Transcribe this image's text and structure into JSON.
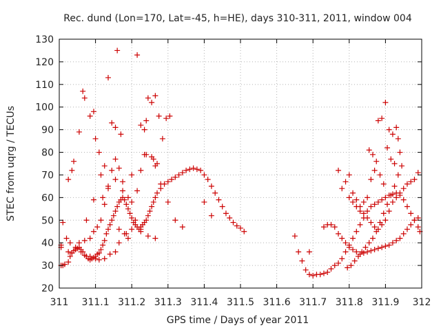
{
  "chart_data": {
    "type": "scatter",
    "title": "Rec. dund (Lon=170, Lat=-45, h=HE), days 310-311, 2011, window 004",
    "xlabel": "GPS time / Days of year 2011",
    "ylabel": "STEC from uqrg / TECUs",
    "xlim": [
      311,
      312
    ],
    "ylim": [
      20,
      130
    ],
    "xticks": [
      311,
      311.1,
      311.2,
      311.3,
      311.4,
      311.5,
      311.6,
      311.7,
      311.8,
      311.9,
      312
    ],
    "xtick_labels": [
      "311",
      "311.1",
      "311.2",
      "311.3",
      "311.4",
      "311.5",
      "311.6",
      "311.7",
      "311.8",
      "311.9",
      "312"
    ],
    "yticks": [
      20,
      30,
      40,
      50,
      60,
      70,
      80,
      90,
      100,
      110,
      120,
      130
    ],
    "ytick_labels": [
      "20",
      "30",
      "40",
      "50",
      "60",
      "70",
      "80",
      "90",
      "100",
      "110",
      "120",
      "130"
    ],
    "grid": true,
    "marker": "plus",
    "color": "#cc0000",
    "series": [
      {
        "x": [
          311.005,
          311.01,
          311.015,
          311.025,
          311.03,
          311.035,
          311.04,
          311.045,
          311.05,
          311.055,
          311.06,
          311.065,
          311.07,
          311.075,
          311.08,
          311.085,
          311.09,
          311.095,
          311.1,
          311.105,
          311.11,
          311.115,
          311.12,
          311.125,
          311.13,
          311.135,
          311.14,
          311.145,
          311.15,
          311.155,
          311.16,
          311.165,
          311.17,
          311.175,
          311.18,
          311.185,
          311.19,
          311.195,
          311.2,
          311.205,
          311.21,
          311.215,
          311.22,
          311.225,
          311.23,
          311.235,
          311.24,
          311.245,
          311.25,
          311.255,
          311.26,
          311.265,
          311.27,
          311.28,
          311.29,
          311.3,
          311.31,
          311.32,
          311.33,
          311.34,
          311.35,
          311.36,
          311.37,
          311.38,
          311.39,
          311.4,
          311.41,
          311.42,
          311.43,
          311.44,
          311.45,
          311.46,
          311.47,
          311.48,
          311.49,
          311.5,
          311.51,
          311.005,
          311.01,
          311.025,
          311.035,
          311.04,
          311.055,
          311.065,
          311.07,
          311.085,
          311.095,
          311.1,
          311.11,
          311.115,
          311.12,
          311.125,
          311.135,
          311.145,
          311.155,
          311.16,
          311.165,
          311.175,
          311.185,
          311.19,
          311.2,
          311.21,
          311.215,
          311.225,
          311.235,
          311.245,
          311.255,
          311.265,
          311.275,
          311.285,
          311.295,
          311.305,
          311.005,
          311.025,
          311.035,
          311.055,
          311.07,
          311.085,
          311.095,
          311.105,
          311.115,
          311.125,
          311.135,
          311.145,
          311.155,
          311.165,
          311.175,
          311.19,
          311.2,
          311.215,
          311.225,
          311.24,
          311.26,
          311.27,
          311.28,
          311.3,
          311.32,
          311.34,
          311.4,
          311.42,
          311.02,
          311.03,
          311.045,
          311.06,
          311.085,
          311.1,
          311.11,
          311.125,
          311.14,
          311.155,
          311.165,
          311.18,
          311.2,
          311.225,
          311.245,
          311.265,
          311.075,
          311.095,
          311.135,
          311.155,
          311.17,
          311.225,
          311.235,
          311.24,
          311.255,
          311.265,
          311.65,
          311.66,
          311.67,
          311.68,
          311.69,
          311.7,
          311.71,
          311.72,
          311.73,
          311.74,
          311.75,
          311.76,
          311.77,
          311.78,
          311.79,
          311.8,
          311.81,
          311.82,
          311.83,
          311.84,
          311.85,
          311.86,
          311.87,
          311.88,
          311.89,
          311.9,
          311.91,
          311.92,
          311.93,
          311.94,
          311.95,
          311.96,
          311.97,
          311.98,
          311.99,
          311.995,
          311.69,
          311.73,
          311.74,
          311.75,
          311.76,
          311.77,
          311.78,
          311.79,
          311.8,
          311.81,
          311.82,
          311.83,
          311.84,
          311.85,
          311.86,
          311.87,
          311.88,
          311.89,
          311.9,
          311.91,
          311.92,
          311.93,
          311.94,
          311.95,
          311.96,
          311.97,
          311.98,
          311.99,
          311.77,
          311.78,
          311.79,
          311.8,
          311.81,
          311.82,
          311.83,
          311.84,
          311.85,
          311.86,
          311.87,
          311.88,
          311.89,
          311.9,
          311.91,
          311.92,
          311.93,
          311.94,
          311.95,
          311.96,
          311.97,
          311.98,
          311.99,
          311.795,
          311.805,
          311.815,
          311.825,
          311.835,
          311.845,
          311.855,
          311.865,
          311.875,
          311.885,
          311.895,
          311.905,
          311.915,
          311.925,
          311.935,
          311.945,
          311.8,
          311.81,
          311.82,
          311.83,
          311.84,
          311.85,
          311.86,
          311.87,
          311.88,
          311.89,
          311.9,
          311.91,
          311.92,
          311.93,
          311.94,
          311.855,
          311.865,
          311.875,
          311.885,
          311.895,
          311.905,
          311.915,
          311.925,
          311.935
        ],
        "y": [
          30,
          30,
          30.5,
          31.5,
          34,
          35.5,
          36.5,
          37,
          37.5,
          38,
          37,
          36,
          34.5,
          34,
          33,
          32.5,
          33,
          33.5,
          34,
          35,
          35.5,
          37,
          39,
          41,
          44,
          46,
          48,
          50,
          52,
          54,
          56,
          58,
          59,
          60,
          59,
          57,
          55,
          53,
          51,
          49,
          48,
          47,
          46,
          47,
          48,
          49,
          50,
          52,
          54,
          56,
          58,
          60,
          62,
          64,
          66,
          67,
          68,
          69,
          70,
          71,
          72,
          72.5,
          73,
          72.5,
          72,
          70,
          68,
          65,
          62,
          59,
          56,
          53,
          51,
          49,
          47.5,
          46.5,
          45,
          39,
          49,
          68,
          72,
          76,
          89,
          107,
          104,
          96,
          98,
          86,
          80,
          70,
          60,
          74,
          113,
          93,
          91,
          125,
          46,
          63,
          44,
          42,
          70,
          50,
          123,
          45,
          79,
          104,
          102,
          105,
          96,
          86,
          95,
          96,
          38,
          36,
          35.5,
          40,
          41,
          42,
          45,
          47,
          50,
          57,
          65,
          72,
          77,
          73,
          67,
          60,
          58,
          63,
          72,
          79,
          77,
          75,
          66,
          58,
          50,
          47,
          58,
          52,
          42,
          40,
          38,
          36,
          34,
          33,
          32.5,
          33,
          35,
          36,
          40,
          44,
          46,
          46,
          43,
          42,
          50,
          59,
          64,
          68,
          88,
          92,
          90,
          94,
          78,
          74,
          43,
          36,
          32,
          28,
          26,
          25.5,
          26,
          26,
          26.5,
          27,
          28.5,
          30,
          31,
          33,
          36,
          39,
          42,
          45,
          48,
          51,
          54,
          56,
          57,
          58,
          59,
          60,
          61,
          61.5,
          62,
          61,
          59,
          56,
          53,
          50,
          47,
          45,
          36,
          47,
          48,
          48,
          47,
          44,
          42,
          40,
          38,
          37,
          36,
          35,
          35.5,
          36,
          36.5,
          37,
          37.5,
          38,
          38.5,
          39,
          40,
          41,
          42,
          44,
          46,
          48,
          50,
          51,
          72,
          64,
          67,
          70,
          62,
          59,
          56,
          53,
          51,
          49,
          47,
          46,
          48,
          50,
          54,
          58,
          60,
          62,
          64,
          66,
          67,
          68,
          71,
          29,
          30,
          32,
          34,
          36,
          38,
          40,
          42,
          45,
          49,
          53,
          57,
          61,
          65,
          70,
          74,
          60,
          58,
          56,
          54,
          58,
          60,
          68,
          72,
          94,
          95,
          102,
          90,
          88,
          91,
          80,
          81,
          79,
          76,
          70,
          66,
          82,
          77,
          75,
          86
        ]
      }
    ]
  }
}
